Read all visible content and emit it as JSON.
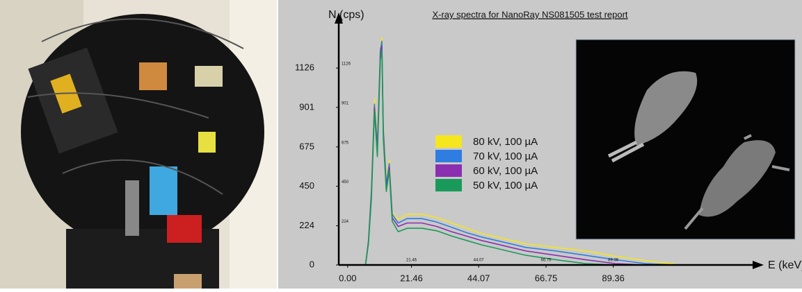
{
  "chart_data": {
    "type": "line",
    "title": "X-ray spectra for NanoRay NS081505 test report",
    "y_label": "N (cps)",
    "x_label": "E (keV)",
    "xlim": [
      -3,
      140
    ],
    "ylim": [
      0,
      1420
    ],
    "xticks": [
      {
        "value": 0,
        "label": "0.00"
      },
      21.46,
      44.07,
      66.75,
      89.36
    ],
    "yticks": [
      0,
      224,
      450,
      675,
      901,
      1126
    ],
    "x": [
      6,
      7,
      8,
      9,
      10,
      11,
      11.5,
      12,
      13,
      14,
      15,
      17,
      20,
      25,
      30,
      35,
      40,
      45,
      50,
      55,
      60,
      70,
      80,
      90,
      100,
      110
    ],
    "series": [
      {
        "name": "80 kV, 100 µA",
        "color": "#f5e61e",
        "values": [
          0,
          150,
          450,
          950,
          700,
          1250,
          1300,
          800,
          480,
          600,
          300,
          260,
          290,
          290,
          270,
          240,
          210,
          180,
          160,
          140,
          120,
          100,
          80,
          50,
          25,
          5
        ]
      },
      {
        "name": "70 kV, 100 µA",
        "color": "#2f7de0",
        "values": [
          0,
          140,
          430,
          920,
          680,
          1230,
          1280,
          780,
          460,
          580,
          290,
          240,
          265,
          265,
          245,
          215,
          185,
          160,
          140,
          120,
          100,
          80,
          55,
          30,
          8,
          0
        ]
      },
      {
        "name": "60 kV, 100 µA",
        "color": "#8a2fb0",
        "values": [
          0,
          130,
          400,
          900,
          650,
          1200,
          1250,
          750,
          440,
          560,
          270,
          220,
          240,
          240,
          220,
          190,
          165,
          140,
          120,
          100,
          80,
          55,
          30,
          8,
          0,
          0
        ]
      },
      {
        "name": "50 kV, 100 µA",
        "color": "#1a9a5a",
        "values": [
          0,
          120,
          380,
          880,
          620,
          1170,
          1230,
          720,
          420,
          540,
          250,
          190,
          210,
          210,
          195,
          165,
          140,
          115,
          95,
          75,
          55,
          30,
          8,
          0,
          0,
          0
        ]
      }
    ]
  }
}
